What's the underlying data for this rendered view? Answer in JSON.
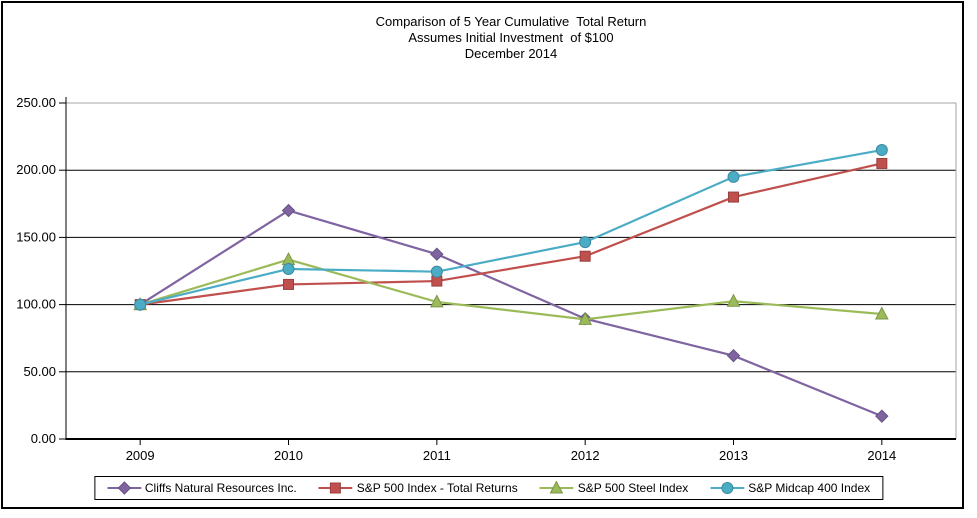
{
  "title": {
    "line1": "Comparison of 5 Year Cumulative  Total Return",
    "line2": "Assumes Initial Investment  of $100",
    "line3": "December 2014"
  },
  "chart_data": {
    "type": "line",
    "categories": [
      "2009",
      "2010",
      "2011",
      "2012",
      "2013",
      "2014"
    ],
    "series": [
      {
        "name": "Cliffs Natural Resources Inc.",
        "values": [
          100,
          170,
          137.5,
          89.5,
          62,
          17
        ],
        "color": "#8064A2",
        "marker_stroke": "#66517F",
        "marker": "diamond"
      },
      {
        "name": "S&P 500 Index - Total Returns",
        "values": [
          100,
          115,
          117.5,
          136,
          180,
          205
        ],
        "color": "#C0504D",
        "marker_stroke": "#99403E",
        "marker": "square"
      },
      {
        "name": "S&P 500 Steel Index",
        "values": [
          100,
          133.5,
          102,
          89,
          102.5,
          93
        ],
        "color": "#9BBB59",
        "marker_stroke": "#7C9647",
        "marker": "triangle"
      },
      {
        "name": "S&P Midcap 400 Index",
        "values": [
          100,
          126.5,
          124.5,
          146.5,
          195,
          215
        ],
        "color": "#4BACC6",
        "marker_stroke": "#3C8A9E",
        "marker": "circle"
      }
    ],
    "ylim": [
      0,
      250
    ],
    "ytick_step": 50,
    "ytick_labels": [
      "0.00",
      "50.00",
      "100.00",
      "150.00",
      "200.00",
      "250.00"
    ],
    "grid": true,
    "legend_position": "bottom",
    "colors": {
      "gridline": "#000000",
      "plot_border": "#A6A6A6",
      "axis": "#000000",
      "text": "#000000"
    }
  }
}
